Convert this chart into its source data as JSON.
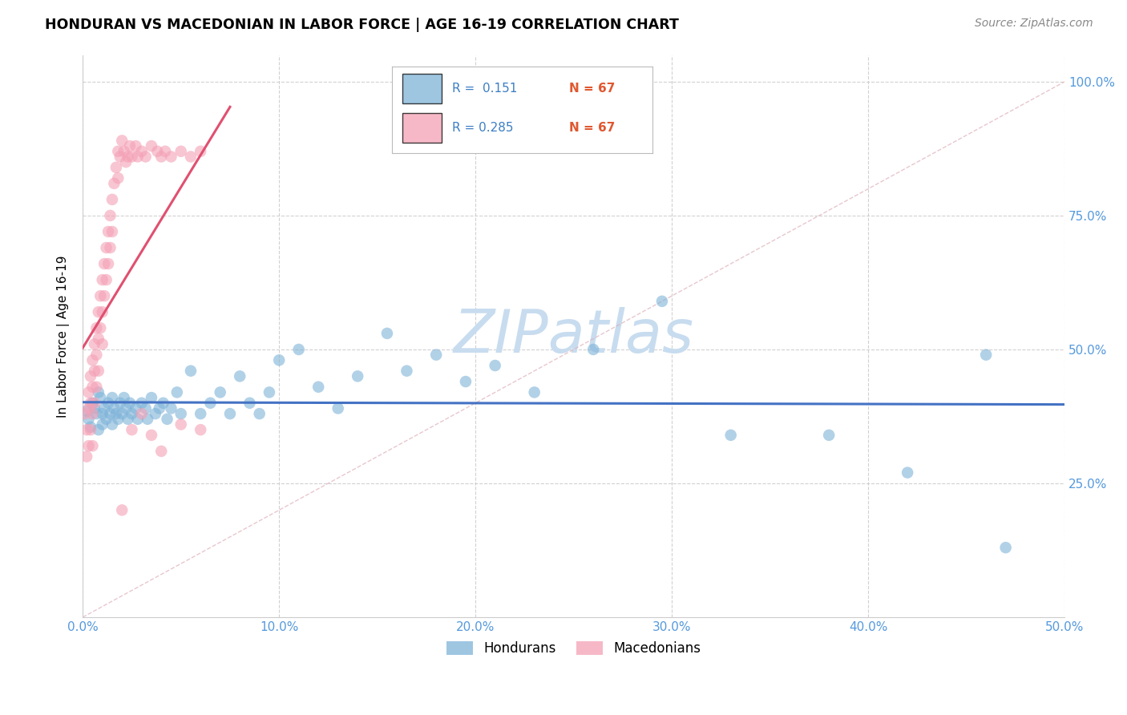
{
  "title": "HONDURAN VS MACEDONIAN IN LABOR FORCE | AGE 16-19 CORRELATION CHART",
  "source": "Source: ZipAtlas.com",
  "ylabel": "In Labor Force | Age 16-19",
  "xlim": [
    0.0,
    0.5
  ],
  "ylim": [
    0.0,
    1.05
  ],
  "xtick_labels": [
    "0.0%",
    "10.0%",
    "20.0%",
    "30.0%",
    "40.0%",
    "50.0%"
  ],
  "xtick_values": [
    0.0,
    0.1,
    0.2,
    0.3,
    0.4,
    0.5
  ],
  "ytick_labels": [
    "25.0%",
    "50.0%",
    "75.0%",
    "100.0%"
  ],
  "ytick_values": [
    0.25,
    0.5,
    0.75,
    1.0
  ],
  "legend_hondurans": "Hondurans",
  "legend_macedonians": "Macedonians",
  "R_honduran": 0.151,
  "N_honduran": 67,
  "R_macedonian": 0.285,
  "N_macedonian": 67,
  "blue_color": "#7EB3D8",
  "pink_color": "#F4A0B5",
  "blue_line_color": "#4472C4",
  "pink_line_color": "#E05070",
  "ref_line_color": "#DDB0B8",
  "watermark": "ZIPatlas",
  "watermark_color": "#C8DCEF",
  "background_color": "#FFFFFF",
  "honduran_x": [
    0.002,
    0.003,
    0.004,
    0.005,
    0.006,
    0.007,
    0.008,
    0.008,
    0.009,
    0.01,
    0.01,
    0.011,
    0.012,
    0.013,
    0.014,
    0.015,
    0.015,
    0.016,
    0.017,
    0.018,
    0.019,
    0.02,
    0.021,
    0.022,
    0.023,
    0.024,
    0.025,
    0.027,
    0.028,
    0.03,
    0.032,
    0.033,
    0.035,
    0.037,
    0.039,
    0.041,
    0.043,
    0.045,
    0.048,
    0.05,
    0.055,
    0.06,
    0.065,
    0.07,
    0.075,
    0.08,
    0.085,
    0.09,
    0.095,
    0.1,
    0.11,
    0.12,
    0.13,
    0.14,
    0.155,
    0.165,
    0.18,
    0.195,
    0.21,
    0.23,
    0.26,
    0.295,
    0.33,
    0.38,
    0.42,
    0.46,
    0.47
  ],
  "honduran_y": [
    0.385,
    0.37,
    0.355,
    0.4,
    0.39,
    0.38,
    0.42,
    0.35,
    0.41,
    0.38,
    0.36,
    0.39,
    0.37,
    0.4,
    0.38,
    0.36,
    0.41,
    0.39,
    0.38,
    0.37,
    0.4,
    0.38,
    0.41,
    0.39,
    0.37,
    0.4,
    0.38,
    0.39,
    0.37,
    0.4,
    0.39,
    0.37,
    0.41,
    0.38,
    0.39,
    0.4,
    0.37,
    0.39,
    0.42,
    0.38,
    0.46,
    0.38,
    0.4,
    0.42,
    0.38,
    0.45,
    0.4,
    0.38,
    0.42,
    0.48,
    0.5,
    0.43,
    0.39,
    0.45,
    0.53,
    0.46,
    0.49,
    0.44,
    0.47,
    0.42,
    0.5,
    0.59,
    0.34,
    0.34,
    0.27,
    0.49,
    0.13
  ],
  "macedonian_x": [
    0.001,
    0.002,
    0.002,
    0.003,
    0.003,
    0.003,
    0.004,
    0.004,
    0.004,
    0.005,
    0.005,
    0.005,
    0.005,
    0.006,
    0.006,
    0.006,
    0.007,
    0.007,
    0.007,
    0.008,
    0.008,
    0.008,
    0.009,
    0.009,
    0.01,
    0.01,
    0.01,
    0.011,
    0.011,
    0.012,
    0.012,
    0.013,
    0.013,
    0.014,
    0.014,
    0.015,
    0.015,
    0.016,
    0.017,
    0.018,
    0.018,
    0.019,
    0.02,
    0.021,
    0.022,
    0.023,
    0.024,
    0.025,
    0.027,
    0.028,
    0.03,
    0.032,
    0.035,
    0.038,
    0.04,
    0.042,
    0.045,
    0.05,
    0.055,
    0.06,
    0.02,
    0.025,
    0.03,
    0.035,
    0.04,
    0.05,
    0.06
  ],
  "macedonian_y": [
    0.38,
    0.35,
    0.3,
    0.42,
    0.39,
    0.32,
    0.45,
    0.4,
    0.35,
    0.48,
    0.43,
    0.38,
    0.32,
    0.51,
    0.46,
    0.4,
    0.54,
    0.49,
    0.43,
    0.57,
    0.52,
    0.46,
    0.6,
    0.54,
    0.63,
    0.57,
    0.51,
    0.66,
    0.6,
    0.69,
    0.63,
    0.72,
    0.66,
    0.75,
    0.69,
    0.78,
    0.72,
    0.81,
    0.84,
    0.87,
    0.82,
    0.86,
    0.89,
    0.87,
    0.85,
    0.86,
    0.88,
    0.86,
    0.88,
    0.86,
    0.87,
    0.86,
    0.88,
    0.87,
    0.86,
    0.87,
    0.86,
    0.87,
    0.86,
    0.87,
    0.2,
    0.35,
    0.38,
    0.34,
    0.31,
    0.36,
    0.35
  ]
}
